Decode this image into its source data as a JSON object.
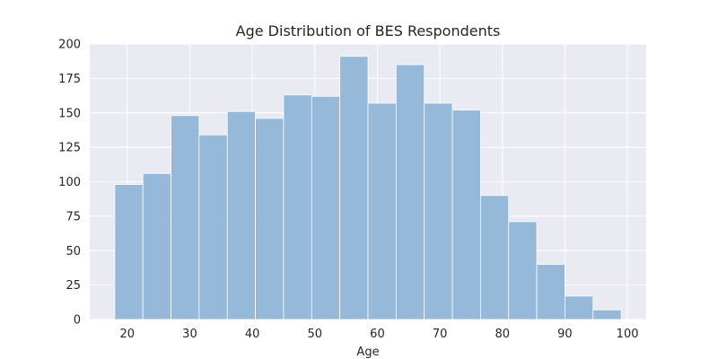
{
  "chart_data": {
    "type": "bar",
    "title": "Age Distribution of BES Respondents",
    "xlabel": "Age",
    "ylabel": "",
    "xlim": [
      14,
      103
    ],
    "ylim": [
      0,
      200
    ],
    "xticks": [
      20,
      30,
      40,
      50,
      60,
      70,
      80,
      90,
      100
    ],
    "yticks": [
      0,
      25,
      50,
      75,
      100,
      125,
      150,
      175,
      200
    ],
    "grid": true,
    "colors": {
      "bar": "#8fb4d7",
      "background": "#eaeaf2",
      "grid": "#ffffff"
    },
    "bins": [
      {
        "start": 18.0,
        "end": 22.5,
        "count": 98
      },
      {
        "start": 22.5,
        "end": 27.0,
        "count": 106
      },
      {
        "start": 27.0,
        "end": 31.5,
        "count": 148
      },
      {
        "start": 31.5,
        "end": 36.0,
        "count": 134
      },
      {
        "start": 36.0,
        "end": 40.5,
        "count": 151
      },
      {
        "start": 40.5,
        "end": 45.0,
        "count": 146
      },
      {
        "start": 45.0,
        "end": 49.5,
        "count": 163
      },
      {
        "start": 49.5,
        "end": 54.0,
        "count": 162
      },
      {
        "start": 54.0,
        "end": 58.5,
        "count": 191
      },
      {
        "start": 58.5,
        "end": 63.0,
        "count": 157
      },
      {
        "start": 63.0,
        "end": 67.5,
        "count": 185
      },
      {
        "start": 67.5,
        "end": 72.0,
        "count": 157
      },
      {
        "start": 72.0,
        "end": 76.5,
        "count": 152
      },
      {
        "start": 76.5,
        "end": 81.0,
        "count": 90
      },
      {
        "start": 81.0,
        "end": 85.5,
        "count": 71
      },
      {
        "start": 85.5,
        "end": 90.0,
        "count": 40
      },
      {
        "start": 90.0,
        "end": 94.5,
        "count": 17
      },
      {
        "start": 94.5,
        "end": 99.0,
        "count": 7
      }
    ]
  }
}
